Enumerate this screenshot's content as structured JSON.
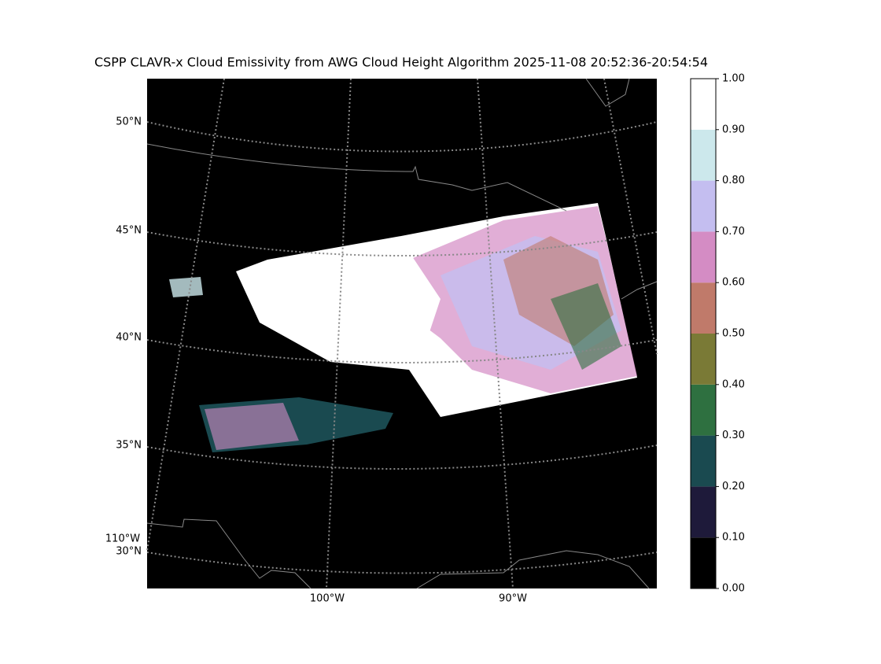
{
  "title": "CSPP CLAVR-x Cloud Emissivity from AWG Cloud Height Algorithm 2025-11-08 20:52:36-20:54:54",
  "map": {
    "lat_labels": [
      "50°N",
      "45°N",
      "40°N",
      "35°N",
      "30°N"
    ],
    "lon_labels": [
      "110°W",
      "100°W",
      "90°W"
    ]
  },
  "colorbar": {
    "ticks": [
      {
        "value": 0,
        "label": "0.00"
      },
      {
        "value": 0.1,
        "label": "0.10"
      },
      {
        "value": 0.2,
        "label": "0.20"
      },
      {
        "value": 0.3,
        "label": "0.30"
      },
      {
        "value": 0.4,
        "label": "0.40"
      },
      {
        "value": 0.5,
        "label": "0.50"
      },
      {
        "value": 0.6,
        "label": "0.60"
      },
      {
        "value": 0.7,
        "label": "0.70"
      },
      {
        "value": 0.8,
        "label": "0.80"
      },
      {
        "value": 0.9,
        "label": "0.90"
      },
      {
        "value": 1,
        "label": "1.00"
      }
    ],
    "colors": [
      "#000000",
      "#1e1a3a",
      "#1a4a50",
      "#2e7040",
      "#7a7a36",
      "#c07a6a",
      "#d48cc4",
      "#c4bef0",
      "#cce8ec",
      "#ffffff"
    ]
  }
}
